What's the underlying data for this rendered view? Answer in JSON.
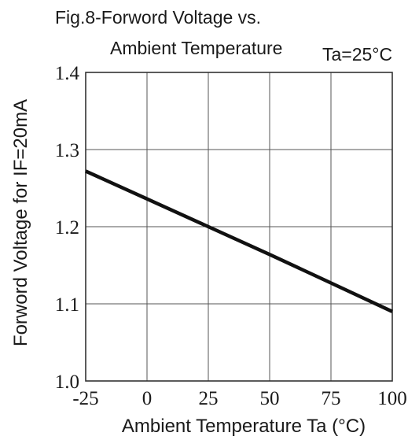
{
  "chart_data": {
    "type": "line",
    "title_line1": "Fig.8-Forword Voltage vs.",
    "title_line2": "Ambient Temperature",
    "condition": "Ta=25°C",
    "xlabel": "Ambient Temperature Ta (°C)",
    "ylabel": "Forword Voltage for IF=20mA",
    "xlim": [
      -25,
      100
    ],
    "ylim": [
      1.0,
      1.4
    ],
    "xticks": [
      "-25",
      "0",
      "25",
      "50",
      "75",
      "100"
    ],
    "yticks": [
      "1.0",
      "1.1",
      "1.2",
      "1.3",
      "1.4"
    ],
    "grid": true,
    "series": [
      {
        "x": [
          -25,
          0,
          25,
          50,
          75,
          100
        ],
        "y": [
          1.272,
          1.236,
          1.2,
          1.164,
          1.127,
          1.09
        ],
        "color": "#111111"
      }
    ]
  }
}
